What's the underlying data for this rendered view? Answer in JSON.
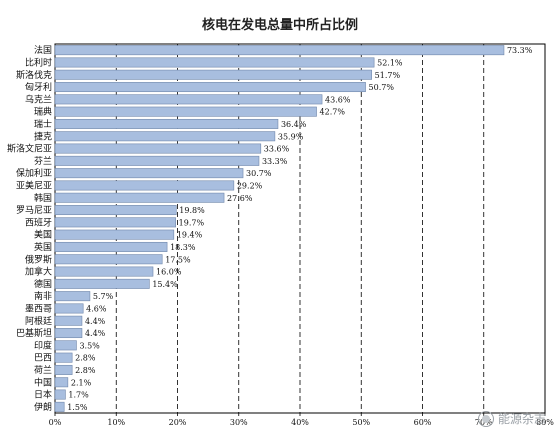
{
  "chart_data": {
    "type": "bar",
    "orientation": "horizontal",
    "title": "核电在发电总量中所占比例",
    "xlim": [
      0,
      80
    ],
    "grid": true,
    "categories": [
      "法国",
      "比利时",
      "斯洛伐克",
      "匈牙利",
      "乌克兰",
      "瑞典",
      "瑞士",
      "捷克",
      "斯洛文尼亚",
      "芬兰",
      "保加利亚",
      "亚美尼亚",
      "韩国",
      "罗马尼亚",
      "西班牙",
      "美国",
      "英国",
      "俄罗斯",
      "加拿大",
      "德国",
      "南非",
      "墨西哥",
      "阿根廷",
      "巴基斯坦",
      "印度",
      "巴西",
      "荷兰",
      "中国",
      "日本",
      "伊朗"
    ],
    "values": [
      73.3,
      52.1,
      51.7,
      50.7,
      43.6,
      42.7,
      36.4,
      35.9,
      33.6,
      33.3,
      30.7,
      29.2,
      27.6,
      19.8,
      19.7,
      19.4,
      18.3,
      17.5,
      16.0,
      15.4,
      5.7,
      4.6,
      4.4,
      4.4,
      3.5,
      2.8,
      2.8,
      2.1,
      1.7,
      1.5
    ],
    "value_labels": [
      "73.3%",
      "52.1%",
      "51.7%",
      "50.7%",
      "43.6%",
      "42.7%",
      "36.4%",
      "35.9%",
      "33.6%",
      "33.3%",
      "30.7%",
      "29.2%",
      "27.6%",
      "19.8%",
      "19.7%",
      "19.4%",
      "18.3%",
      "17.5%",
      "16.0%",
      "15.4%",
      "5.7%",
      "4.6%",
      "4.4%",
      "4.4%",
      "3.5%",
      "2.8%",
      "2.8%",
      "2.1%",
      "1.7%",
      "1.5%"
    ],
    "x_ticks": [
      "0%",
      "10%",
      "20%",
      "30%",
      "40%",
      "50%",
      "60%",
      "70%",
      "80%"
    ],
    "bar_color": "#a8bedf",
    "bar_border": "#6f86aa"
  },
  "watermark": {
    "text": "能源杂志",
    "icon": "wechat-icon"
  }
}
